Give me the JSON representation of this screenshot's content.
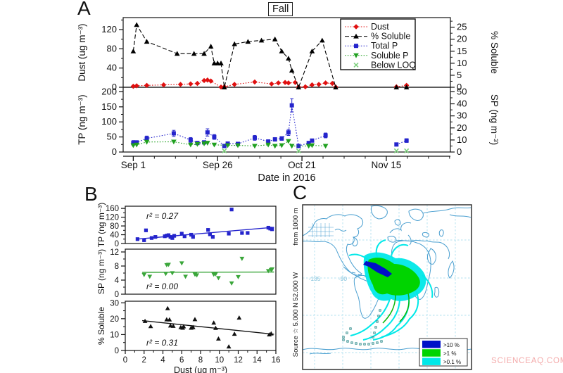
{
  "panel_labels": {
    "a": "A",
    "b": "B",
    "c": "C"
  },
  "fall_title": "Fall",
  "watermark": "SCIENCEAQ.COM",
  "legend_a": [
    {
      "label": "Dust",
      "color": "#e01010",
      "marker": "diamond",
      "line": "dotted"
    },
    {
      "label": "% Soluble",
      "color": "#000000",
      "marker": "triangle-up",
      "line": "dashed"
    },
    {
      "label": "Total P",
      "color": "#2424cc",
      "marker": "square",
      "line": "dotted"
    },
    {
      "label": "Soluble P",
      "color": "#1fa01f",
      "marker": "triangle-down",
      "line": "dotted"
    },
    {
      "label": "Below LOQ",
      "color": "#7fd07f",
      "marker": "x",
      "line": "none"
    }
  ],
  "chart_data": [
    {
      "id": "a-top",
      "type": "line",
      "title": "Fall",
      "ylabel_left": "Dust (ug m⁻³)",
      "ylabel_right": "% Soluble",
      "ylim_left": [
        0,
        145
      ],
      "yticks_left": [
        0,
        40,
        80,
        120
      ],
      "ylim_right": [
        0,
        29
      ],
      "yticks_right": [
        0,
        5,
        10,
        15,
        20,
        25
      ],
      "xlim": [
        -3,
        94
      ],
      "series": [
        {
          "name": "Dust",
          "axis": "left",
          "color": "#e01010",
          "marker": "diamond",
          "line": "dotted",
          "x": [
            0,
            1,
            4,
            9,
            14,
            17,
            19,
            21,
            22,
            23,
            26,
            27,
            30,
            36,
            41,
            43,
            45,
            46,
            48,
            49,
            51,
            53,
            55,
            57,
            59,
            60,
            78,
            81
          ],
          "y": [
            2,
            3,
            4,
            5,
            6,
            7,
            8,
            14,
            15,
            13,
            0.5,
            1,
            6,
            11,
            7,
            9,
            10,
            9,
            10,
            0.5,
            1,
            5,
            6,
            9,
            8,
            0.5,
            1,
            4
          ]
        },
        {
          "name": "% Soluble",
          "axis": "right",
          "color": "#000000",
          "marker": "triangle-up",
          "line": "dashed",
          "x": [
            0,
            1,
            4,
            13,
            18,
            21,
            23,
            24,
            25,
            26,
            27,
            30,
            34,
            38,
            42,
            44,
            46,
            47,
            49,
            53,
            56,
            60,
            78,
            81
          ],
          "y": [
            15,
            26,
            19,
            14,
            14,
            14,
            17,
            10,
            10,
            10,
            0,
            18,
            19,
            19.5,
            20,
            15,
            12,
            7,
            0,
            15,
            19.5,
            0,
            0,
            0
          ]
        }
      ]
    },
    {
      "id": "a-bottom",
      "type": "line",
      "ylabel_left": "TP (ng m⁻³)",
      "ylabel_right": "SP (ng m⁻³)",
      "ylim_left": [
        0,
        215
      ],
      "yticks_left": [
        0,
        50,
        100,
        150,
        200
      ],
      "ylim_right": [
        0,
        53.75
      ],
      "yticks_right": [
        0,
        10,
        20,
        30,
        40,
        50
      ],
      "xlim": [
        -3,
        94
      ],
      "xlabel": "Date in 2016",
      "xticks": [
        {
          "v": 0,
          "label": "Sep 1"
        },
        {
          "v": 25,
          "label": "Sep 26"
        },
        {
          "v": 50,
          "label": "Oct 21"
        },
        {
          "v": 75,
          "label": "Nov 15"
        }
      ],
      "series": [
        {
          "name": "Total P",
          "axis": "left",
          "color": "#2424cc",
          "marker": "square",
          "line": "dotted",
          "x": [
            0,
            1,
            4,
            12,
            17,
            19,
            21,
            22,
            24,
            27,
            28,
            31,
            36,
            40,
            42,
            44,
            46,
            47,
            49,
            52,
            53,
            57,
            78,
            81
          ],
          "y": [
            30,
            32,
            45,
            62,
            40,
            30,
            32,
            65,
            50,
            20,
            28,
            27,
            47,
            35,
            42,
            45,
            65,
            155,
            20,
            30,
            38,
            55,
            25,
            38
          ],
          "err": [
            8,
            5,
            8,
            10,
            8,
            5,
            5,
            12,
            8,
            5,
            5,
            5,
            8,
            5,
            6,
            6,
            10,
            22,
            5,
            5,
            5,
            8,
            5,
            6
          ]
        },
        {
          "name": "Soluble P",
          "axis": "right",
          "color": "#1fa01f",
          "marker": "triangle-down",
          "line": "dotted",
          "x": [
            0,
            1,
            4,
            12,
            17,
            19,
            21,
            22,
            24,
            28,
            31,
            36,
            40,
            42,
            44,
            46,
            47,
            52,
            53,
            57
          ],
          "y": [
            5.5,
            6,
            8.3,
            8.5,
            6,
            6.5,
            7,
            7.5,
            6,
            5.5,
            5.5,
            5,
            6,
            5,
            5.5,
            9,
            5,
            5,
            5.5,
            5
          ]
        },
        {
          "name": "Below LOQ",
          "axis": "right",
          "color": "#7fd07f",
          "marker": "x",
          "line": "none",
          "x": [
            27,
            49,
            78,
            81
          ],
          "y": [
            1,
            1,
            1,
            1
          ]
        }
      ]
    },
    {
      "id": "b-tp",
      "type": "scatter",
      "ylabel": "TP (ng m⁻³)",
      "ylim": [
        0,
        170
      ],
      "yticks": [
        0,
        40,
        80,
        120,
        160
      ],
      "xlim": [
        0,
        16
      ],
      "r2_text": "r² = 0.27",
      "r2_pos": "top",
      "fit": {
        "x1": 1.2,
        "y1": 20,
        "x2": 15.8,
        "y2": 74
      },
      "color": "#2424cc",
      "marker": "square",
      "x": [
        1.3,
        2,
        2.2,
        2.8,
        3.2,
        4.2,
        4.4,
        4.6,
        4.8,
        5,
        5.2,
        6,
        6.3,
        7,
        7.2,
        8.8,
        9,
        9.3,
        11,
        11.3,
        12.4,
        13,
        15.2,
        15.4,
        15.6
      ],
      "y": [
        20,
        15,
        60,
        25,
        30,
        33,
        36,
        38,
        30,
        25,
        35,
        45,
        33,
        40,
        30,
        62,
        42,
        30,
        45,
        155,
        48,
        48,
        72,
        68,
        65
      ]
    },
    {
      "id": "b-sp",
      "type": "scatter",
      "ylabel": "SP (ng m⁻³)",
      "ylim": [
        0,
        12.8
      ],
      "yticks": [
        0,
        4,
        8,
        12
      ],
      "xlim": [
        0,
        16
      ],
      "r2_text": "r² = 0.00",
      "r2_pos": "bottom",
      "fit": {
        "x1": 1.8,
        "y1": 6.2,
        "x2": 15.8,
        "y2": 6.3
      },
      "color": "#3aa63a",
      "marker": "triangle-down",
      "x": [
        2,
        2.6,
        4.3,
        4.4,
        4.6,
        5,
        6,
        6.4,
        7.4,
        7.6,
        9.4,
        9.6,
        9.9,
        11.3,
        12,
        12.4,
        15.2,
        15.5,
        15.6
      ],
      "y": [
        5.5,
        5,
        5.8,
        8.3,
        8.4,
        6,
        8.8,
        5,
        5.6,
        5.4,
        5.6,
        5.7,
        4.6,
        3.1,
        4.9,
        10.1,
        6.6,
        6.9,
        7.1
      ]
    },
    {
      "id": "b-sol",
      "type": "scatter",
      "ylabel": "% Soluble",
      "ylim": [
        0,
        31
      ],
      "yticks": [
        0,
        10,
        20,
        30
      ],
      "xlim": [
        0,
        16
      ],
      "xticks": [
        0,
        2,
        4,
        6,
        8,
        10,
        12,
        14,
        16
      ],
      "xlabel": "Dust (ug m⁻³)",
      "r2_text": "r² = 0.31",
      "r2_pos": "bottom",
      "fit": {
        "x1": 1.8,
        "y1": 18.8,
        "x2": 15.8,
        "y2": 10.2
      },
      "color": "#111111",
      "marker": "triangle-up",
      "x": [
        2.1,
        2.7,
        4.4,
        4.5,
        4.7,
        4.8,
        5.1,
        5.9,
        6.1,
        6.2,
        7,
        7.2,
        7.4,
        9.4,
        9.6,
        9.9,
        11,
        11.6,
        12.1,
        15.3,
        15.5
      ],
      "y": [
        18.5,
        15.2,
        19.5,
        26.5,
        19.4,
        15.6,
        15.4,
        14.6,
        14.2,
        15.1,
        14.2,
        14.6,
        19.6,
        17.4,
        14.1,
        7.4,
        2.4,
        10.4,
        20.6,
        10,
        10.6
      ]
    }
  ],
  "map": {
    "left_label_top": "from 1000 m",
    "left_label_bottom": "Source ☆  5.000 N  52.000 W",
    "lon_labels": [
      {
        "text": "-135",
        "x": 17
      },
      {
        "text": "-90",
        "x": 57
      }
    ],
    "legend": [
      {
        "label": ">10 %",
        "color": "#0010c8"
      },
      {
        "label": ">1 %",
        "color": "#00d400"
      },
      {
        "label": ">0.1 %",
        "color": "#00e8e8"
      }
    ],
    "coast_color": "#4a9fd0",
    "grid_color": "#b0e0ef",
    "lon_label_color": "#85c3dc",
    "plume_blue": "#0010c8",
    "plume_green": "#00d400",
    "plume_cyan": "#00e8e8",
    "traj_color": "#2e8b8b"
  }
}
